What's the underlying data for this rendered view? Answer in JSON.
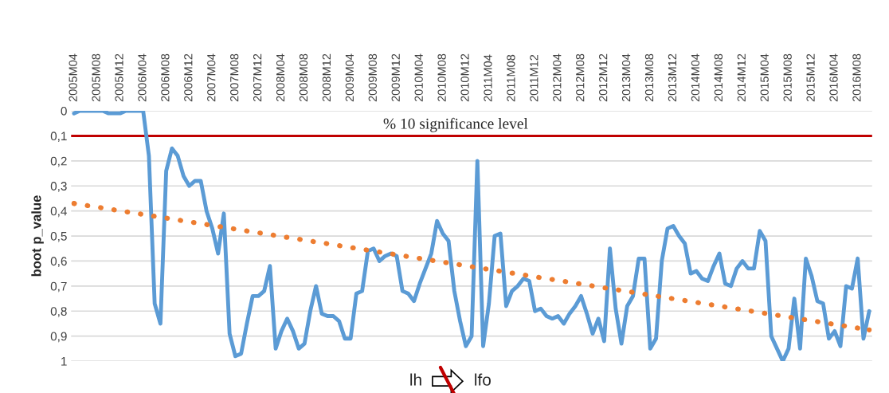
{
  "chart_data": {
    "type": "line",
    "ylabel": "boot p_value",
    "categories": [
      "2005M04",
      null,
      null,
      null,
      "2005M08",
      null,
      null,
      null,
      "2005M12",
      null,
      null,
      null,
      "2006M04",
      null,
      null,
      null,
      "2006M08",
      null,
      null,
      null,
      "2006M12",
      null,
      null,
      null,
      "2007M04",
      null,
      null,
      null,
      "2007M08",
      null,
      null,
      null,
      "2007M12",
      null,
      null,
      null,
      "2008M04",
      null,
      null,
      null,
      "2008M08",
      null,
      null,
      null,
      "2008M12",
      null,
      null,
      null,
      "2009M04",
      null,
      null,
      null,
      "2009M08",
      null,
      null,
      null,
      "2009M12",
      null,
      null,
      null,
      "2010M04",
      null,
      null,
      null,
      "2010M08",
      null,
      null,
      null,
      "2010M12",
      null,
      null,
      null,
      "2011M04",
      null,
      null,
      null,
      "2011M08",
      null,
      null,
      null,
      "2011M12",
      null,
      null,
      null,
      "2012M04",
      null,
      null,
      null,
      "2012M08",
      null,
      null,
      null,
      "2012M12",
      null,
      null,
      null,
      "2013M04",
      null,
      null,
      null,
      "2013M08",
      null,
      null,
      null,
      "2013M12",
      null,
      null,
      null,
      "2014M04",
      null,
      null,
      null,
      "2014M08",
      null,
      null,
      null,
      "2014M12",
      null,
      null,
      null,
      "2015M04",
      null,
      null,
      null,
      "2015M08",
      null,
      null,
      null,
      "2015M12",
      null,
      null,
      null,
      "2016M04",
      null,
      null,
      null,
      "2016M08",
      null,
      null
    ],
    "series": [
      {
        "color": "#5b9bd5",
        "line_style": "solid",
        "values": [
          0.01,
          0,
          0,
          0,
          0,
          0,
          0.01,
          0.01,
          0.01,
          0,
          0,
          0,
          0,
          0.18,
          0.77,
          0.85,
          0.24,
          0.15,
          0.18,
          0.26,
          0.3,
          0.28,
          0.28,
          0.4,
          0.47,
          0.57,
          0.41,
          0.89,
          0.98,
          0.97,
          0.85,
          0.74,
          0.74,
          0.72,
          0.62,
          0.95,
          0.88,
          0.83,
          0.88,
          0.95,
          0.93,
          0.8,
          0.7,
          0.81,
          0.82,
          0.82,
          0.84,
          0.91,
          0.91,
          0.73,
          0.72,
          0.56,
          0.55,
          0.6,
          0.58,
          0.57,
          0.58,
          0.72,
          0.73,
          0.76,
          0.69,
          0.63,
          0.57,
          0.44,
          0.49,
          0.52,
          0.72,
          0.84,
          0.94,
          0.9,
          0.2,
          0.94,
          0.77,
          0.5,
          0.49,
          0.78,
          0.72,
          0.7,
          0.67,
          0.68,
          0.8,
          0.79,
          0.82,
          0.83,
          0.82,
          0.85,
          0.81,
          0.78,
          0.74,
          0.81,
          0.89,
          0.83,
          0.92,
          0.55,
          0.79,
          0.93,
          0.78,
          0.74,
          0.59,
          0.59,
          0.95,
          0.91,
          0.6,
          0.47,
          0.46,
          0.5,
          0.53,
          0.65,
          0.64,
          0.67,
          0.68,
          0.62,
          0.57,
          0.69,
          0.7,
          0.63,
          0.6,
          0.63,
          0.63,
          0.48,
          0.52,
          0.9,
          0.95,
          1.0,
          0.95,
          0.75,
          0.95,
          0.59,
          0.66,
          0.76,
          0.77,
          0.91,
          0.88,
          0.94,
          0.7,
          0.71,
          0.59,
          0.91,
          0.8
        ]
      },
      {
        "color": "#ed7d31",
        "line_style": "dotted",
        "marker": "circle",
        "values": [
          0.37,
          null,
          null,
          null,
          null,
          null,
          null,
          null,
          null,
          null,
          null,
          null,
          null,
          null,
          null,
          null,
          null,
          null,
          null,
          null,
          null,
          null,
          null,
          null,
          null,
          null,
          null,
          null,
          null,
          null,
          null,
          null,
          null,
          null,
          null,
          null,
          null,
          null,
          null,
          null,
          null,
          null,
          null,
          null,
          null,
          null,
          null,
          null,
          null,
          null,
          null,
          null,
          null,
          null,
          null,
          null,
          null,
          null,
          null,
          null,
          null,
          null,
          null,
          null,
          null,
          null,
          null,
          null,
          null,
          null,
          null,
          null,
          null,
          null,
          null,
          null,
          null,
          null,
          null,
          null,
          null,
          null,
          null,
          null,
          null,
          null,
          null,
          null,
          null,
          null,
          null,
          null,
          null,
          null,
          null,
          null,
          null,
          null,
          null,
          null,
          null,
          null,
          null,
          null,
          null,
          null,
          null,
          null,
          null,
          null,
          null,
          null,
          null,
          null,
          null,
          null,
          null,
          null,
          null,
          null,
          null,
          null,
          null,
          null,
          null,
          null,
          null,
          null,
          null,
          null,
          null,
          null,
          null,
          null,
          null,
          null,
          null,
          null,
          0.875
        ]
      }
    ],
    "ylim": [
      1,
      0
    ],
    "yticks": [
      0,
      {
        "value": 0.1,
        "label": "0,1"
      },
      {
        "value": 0.2,
        "label": "0,2"
      },
      {
        "value": 0.3,
        "label": "0,3"
      },
      {
        "value": 0.4,
        "label": "0,4"
      },
      {
        "value": 0.5,
        "label": "0,5"
      },
      {
        "value": 0.6,
        "label": "0,6"
      },
      {
        "value": 0.7,
        "label": "0,7"
      },
      {
        "value": 0.8,
        "label": "0,8"
      },
      {
        "value": 0.9,
        "label": "0,9"
      },
      1
    ],
    "ref_lines": [
      {
        "axis": "y",
        "value": 0.1,
        "label": "% 10 significance level",
        "color": "#c00000",
        "line_style": "solid"
      }
    ],
    "annotations": [
      "lh",
      "lfo"
    ],
    "grid": "y",
    "marker": "none"
  }
}
